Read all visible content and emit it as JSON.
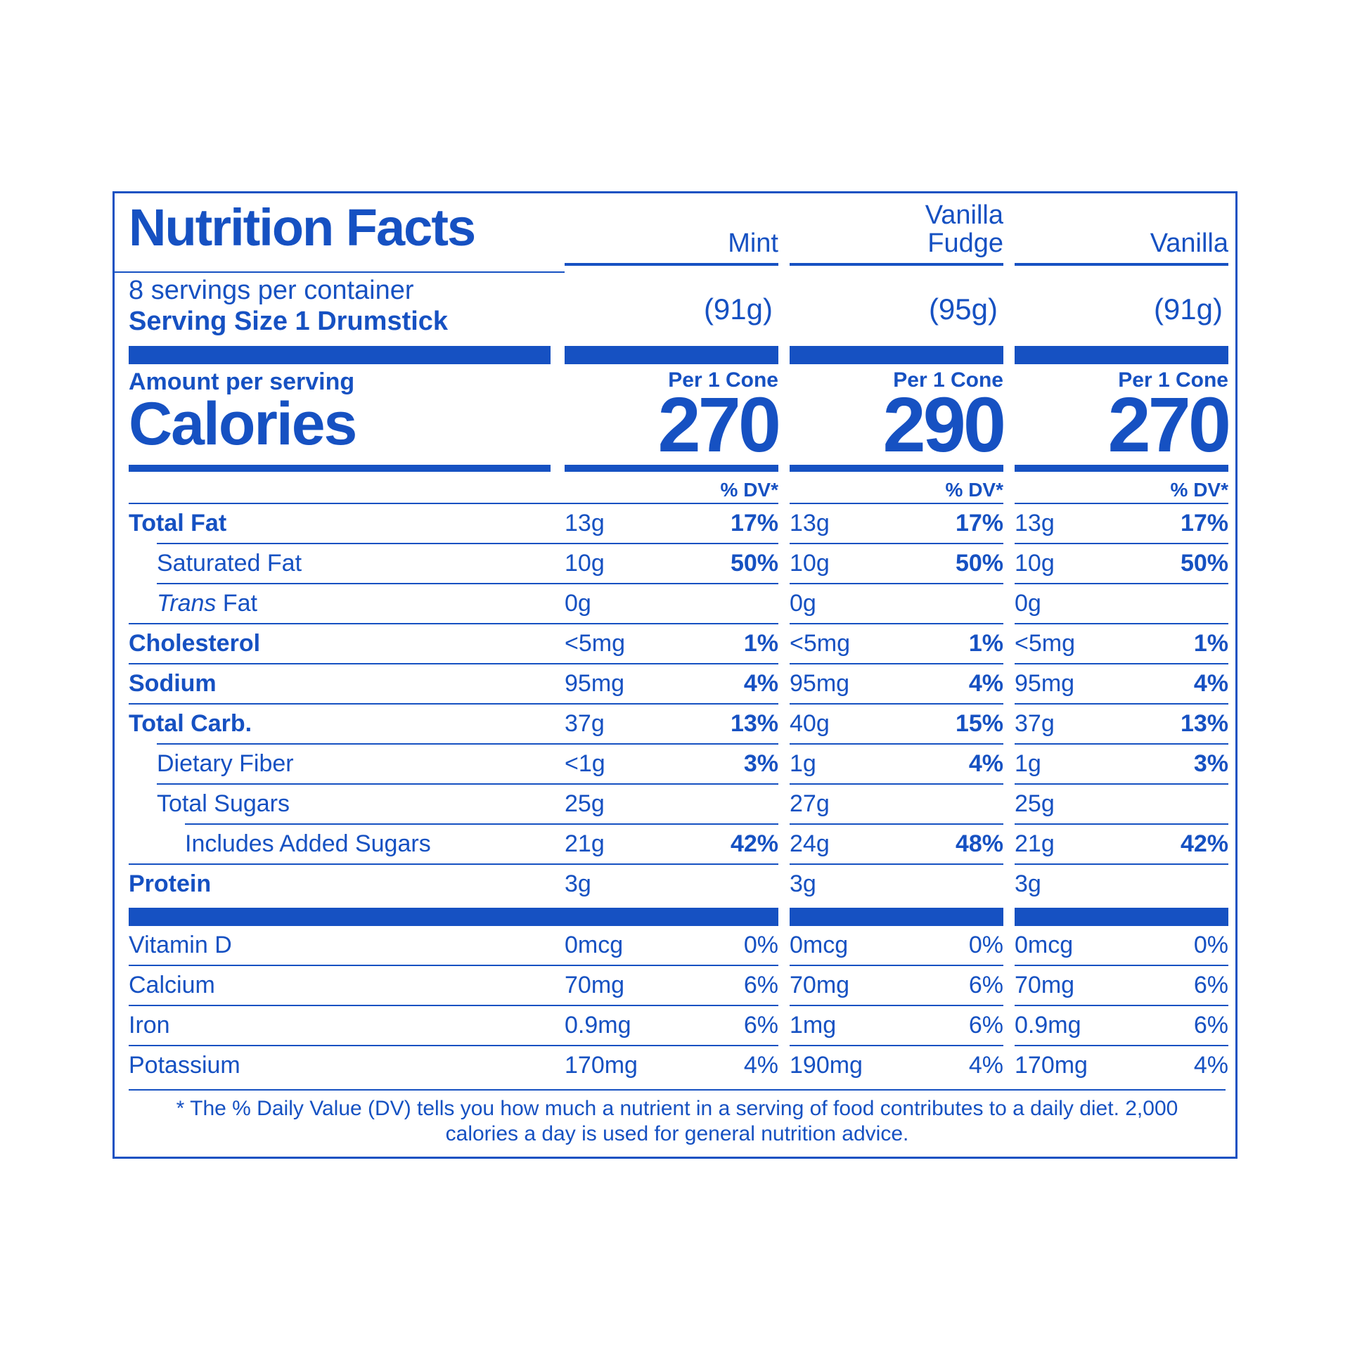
{
  "colors": {
    "accent": "#1651c2",
    "background": "#ffffff"
  },
  "title": "Nutrition Facts",
  "servings_per_container": "8 servings per container",
  "serving_size_label": "Serving Size 1 Drumstick",
  "amount_per_serving": "Amount per serving",
  "calories_label": "Calories",
  "per_cone_label": "Per 1 Cone",
  "dv_header": "% DV*",
  "flavors": [
    {
      "name": "Mint",
      "weight": "(91g)",
      "calories": "270"
    },
    {
      "name": "Vanilla\nFudge",
      "weight": "(95g)",
      "calories": "290"
    },
    {
      "name": "Vanilla",
      "weight": "(91g)",
      "calories": "270"
    }
  ],
  "nutrients": [
    {
      "label": "Total Fat",
      "bold": true,
      "indent": 0,
      "cols": [
        {
          "amt": "13g",
          "pct": "17%"
        },
        {
          "amt": "13g",
          "pct": "17%"
        },
        {
          "amt": "13g",
          "pct": "17%"
        }
      ]
    },
    {
      "label": "Saturated Fat",
      "bold": false,
      "indent": 1,
      "cols": [
        {
          "amt": "10g",
          "pct": "50%"
        },
        {
          "amt": "10g",
          "pct": "50%"
        },
        {
          "amt": "10g",
          "pct": "50%"
        }
      ]
    },
    {
      "label": "Trans Fat",
      "bold": false,
      "indent": 1,
      "italic_first_word": true,
      "cols": [
        {
          "amt": "0g",
          "pct": ""
        },
        {
          "amt": "0g",
          "pct": ""
        },
        {
          "amt": "0g",
          "pct": ""
        }
      ]
    },
    {
      "label": "Cholesterol",
      "bold": true,
      "indent": 0,
      "cols": [
        {
          "amt": "<5mg",
          "pct": "1%"
        },
        {
          "amt": "<5mg",
          "pct": "1%"
        },
        {
          "amt": "<5mg",
          "pct": "1%"
        }
      ]
    },
    {
      "label": "Sodium",
      "bold": true,
      "indent": 0,
      "cols": [
        {
          "amt": "95mg",
          "pct": "4%"
        },
        {
          "amt": "95mg",
          "pct": "4%"
        },
        {
          "amt": "95mg",
          "pct": "4%"
        }
      ]
    },
    {
      "label": "Total Carb.",
      "bold": true,
      "indent": 0,
      "cols": [
        {
          "amt": "37g",
          "pct": "13%"
        },
        {
          "amt": "40g",
          "pct": "15%"
        },
        {
          "amt": "37g",
          "pct": "13%"
        }
      ]
    },
    {
      "label": "Dietary Fiber",
      "bold": false,
      "indent": 1,
      "cols": [
        {
          "amt": "<1g",
          "pct": "3%"
        },
        {
          "amt": "1g",
          "pct": "4%"
        },
        {
          "amt": "1g",
          "pct": "3%"
        }
      ]
    },
    {
      "label": "Total Sugars",
      "bold": false,
      "indent": 1,
      "cols": [
        {
          "amt": "25g",
          "pct": ""
        },
        {
          "amt": "27g",
          "pct": ""
        },
        {
          "amt": "25g",
          "pct": ""
        }
      ]
    },
    {
      "label": "Includes Added Sugars",
      "bold": false,
      "indent": 2,
      "cols": [
        {
          "amt": "21g",
          "pct": "42%"
        },
        {
          "amt": "24g",
          "pct": "48%"
        },
        {
          "amt": "21g",
          "pct": "42%"
        }
      ]
    },
    {
      "label": "Protein",
      "bold": true,
      "indent": 0,
      "cols": [
        {
          "amt": "3g",
          "pct": ""
        },
        {
          "amt": "3g",
          "pct": ""
        },
        {
          "amt": "3g",
          "pct": ""
        }
      ]
    }
  ],
  "vitamins": [
    {
      "label": "Vitamin D",
      "cols": [
        {
          "amt": "0mcg",
          "pct": "0%"
        },
        {
          "amt": "0mcg",
          "pct": "0%"
        },
        {
          "amt": "0mcg",
          "pct": "0%"
        }
      ]
    },
    {
      "label": "Calcium",
      "cols": [
        {
          "amt": "70mg",
          "pct": "6%"
        },
        {
          "amt": "70mg",
          "pct": "6%"
        },
        {
          "amt": "70mg",
          "pct": "6%"
        }
      ]
    },
    {
      "label": "Iron",
      "cols": [
        {
          "amt": "0.9mg",
          "pct": "6%"
        },
        {
          "amt": "1mg",
          "pct": "6%"
        },
        {
          "amt": "0.9mg",
          "pct": "6%"
        }
      ]
    },
    {
      "label": "Potassium",
      "cols": [
        {
          "amt": "170mg",
          "pct": "4%"
        },
        {
          "amt": "190mg",
          "pct": "4%"
        },
        {
          "amt": "170mg",
          "pct": "4%"
        }
      ]
    }
  ],
  "footnote": "* The % Daily Value (DV) tells you how much a nutrient in a serving of food contributes to a daily diet. 2,000 calories a day is used for general nutrition advice."
}
